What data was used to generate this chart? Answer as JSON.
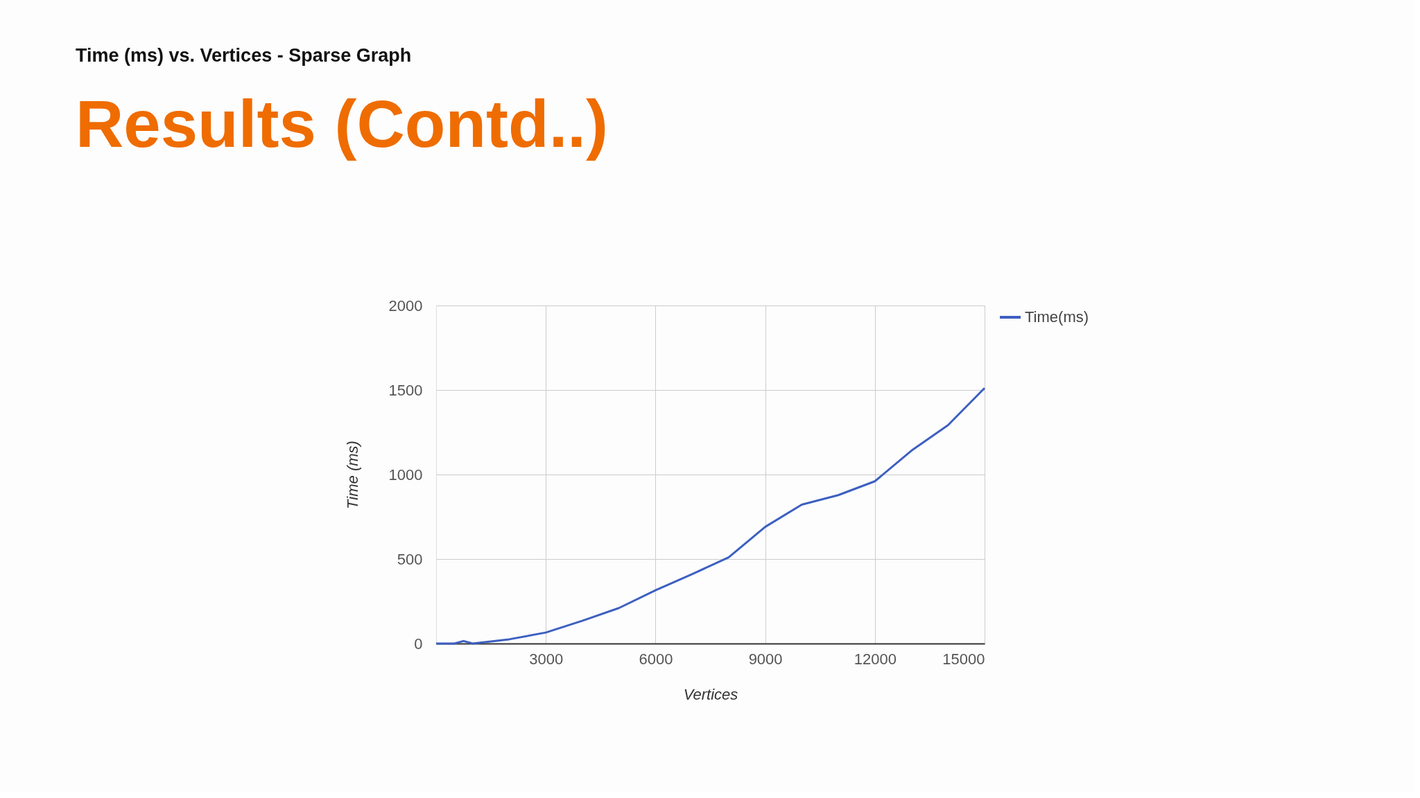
{
  "chart_data": {
    "type": "line",
    "title": "Time (ms) vs. Vertices - Sparse Graph",
    "xlabel": "Vertices",
    "ylabel": "Time (ms)",
    "annotations": [
      "Results (Contd..)"
    ],
    "x": [
      0,
      500,
      750,
      1000,
      2000,
      3000,
      4000,
      5000,
      6000,
      7000,
      8000,
      9000,
      10000,
      11000,
      12000,
      13000,
      14000,
      15000
    ],
    "series": [
      {
        "name": "Time(ms)",
        "color": "#3d5fc0",
        "values": [
          0,
          0,
          15,
          0,
          25,
          65,
          135,
          210,
          315,
          410,
          510,
          690,
          822,
          878,
          960,
          1141,
          1292,
          1511
        ]
      }
    ],
    "xlim": [
      0,
      15000
    ],
    "xticks": [
      3000,
      6000,
      9000,
      12000,
      15000
    ],
    "ylim": [
      0,
      2000
    ],
    "yticks": [
      0,
      500,
      1000,
      1500,
      2000
    ],
    "grid": true,
    "legend": "top right",
    "marker": "none",
    "line_style": "solid"
  }
}
